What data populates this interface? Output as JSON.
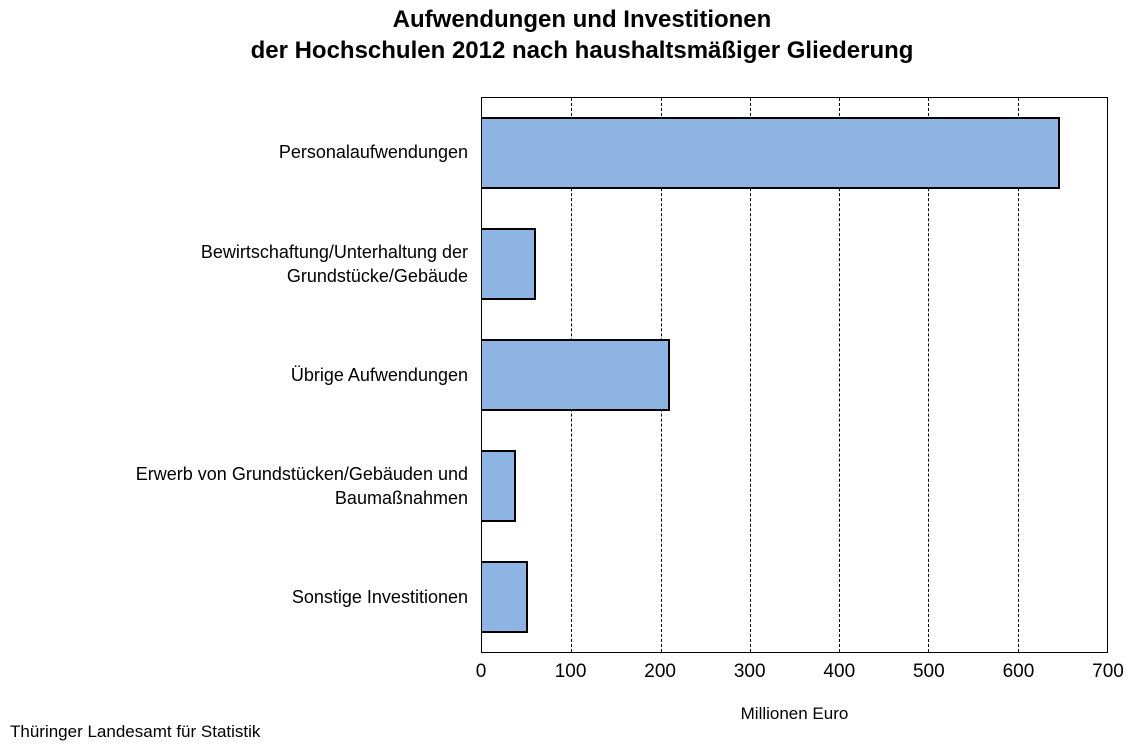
{
  "title": {
    "line1": "Aufwendungen und Investitionen",
    "line2": "der Hochschulen 2012 nach haushaltsmäßiger Gliederung"
  },
  "source": "Thüringer Landesamt für Statistik",
  "chart_data": {
    "type": "bar",
    "orientation": "horizontal",
    "title": "Aufwendungen und Investitionen der Hochschulen 2012 nach haushaltsmäßiger Gliederung",
    "categories": [
      "Personalaufwendungen",
      "Bewirtschaftung/Unterhaltung der\nGrundstücke/Gebäude",
      "Übrige Aufwendungen",
      "Erwerb von Grundstücken/Gebäuden und\nBaumaßnahmen",
      "Sonstige Investitionen"
    ],
    "values": [
      647,
      60,
      210,
      38,
      51
    ],
    "xlabel": "Millionen Euro",
    "xlim": [
      0,
      700
    ],
    "xticks": [
      0,
      100,
      200,
      300,
      400,
      500,
      600,
      700
    ],
    "grid": true,
    "grid_style": "dashed-vertical",
    "legend": false,
    "bar_color": "#8DB4E2",
    "bar_border_color": "#000000"
  }
}
